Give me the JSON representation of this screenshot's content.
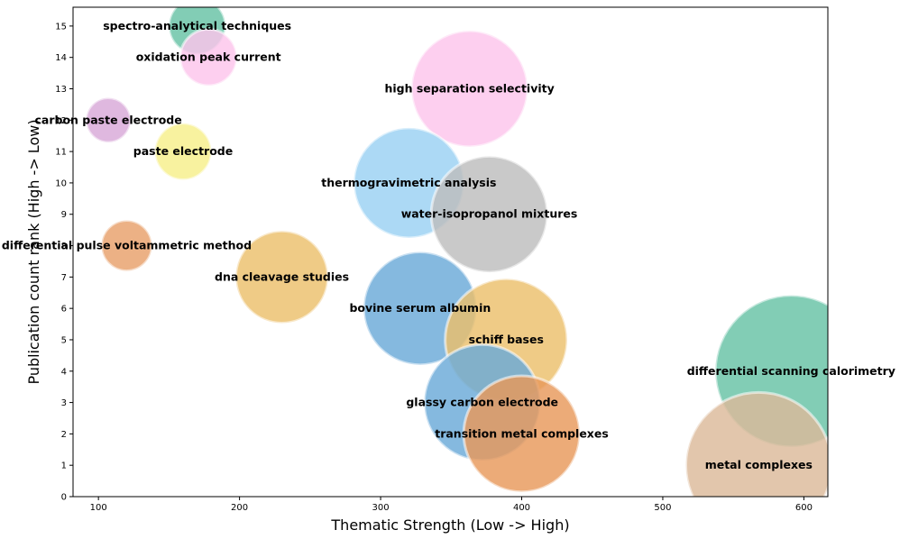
{
  "chart_data": {
    "type": "scatter",
    "subtype": "bubble",
    "title": "",
    "xlabel": "Thematic Strength (Low -> High)",
    "ylabel": "Publication count rank (High -> Low)",
    "xlim": [
      82,
      617
    ],
    "ylim": [
      0,
      15.6
    ],
    "xticks": [
      100,
      200,
      300,
      400,
      500,
      600
    ],
    "yticks": [
      0,
      1,
      2,
      3,
      4,
      5,
      6,
      7,
      8,
      9,
      10,
      11,
      12,
      13,
      14,
      15
    ],
    "grid": false,
    "legend": "none",
    "points": [
      {
        "label": "spectro-analytical techniques",
        "x": 170,
        "y": 15,
        "size": 0.95,
        "color": "#66c2a5"
      },
      {
        "label": "oxidation peak current",
        "x": 178,
        "y": 14,
        "size": 0.95,
        "color": "#fcc5ec"
      },
      {
        "label": "high separation selectivity",
        "x": 363,
        "y": 13,
        "size": 1.95,
        "color": "#fcc5ec"
      },
      {
        "label": "carbon paste electrode",
        "x": 107,
        "y": 12,
        "size": 0.75,
        "color": "#d8a8d8"
      },
      {
        "label": "paste electrode",
        "x": 160,
        "y": 11,
        "size": 0.95,
        "color": "#f6ef8a"
      },
      {
        "label": "thermogravimetric analysis",
        "x": 320,
        "y": 10,
        "size": 1.85,
        "color": "#9ad1f3"
      },
      {
        "label": "water-isopropanol mixtures",
        "x": 377,
        "y": 9,
        "size": 1.95,
        "color": "#bdbdbd"
      },
      {
        "label": "differential pulse voltammetric method",
        "x": 120,
        "y": 8,
        "size": 0.85,
        "color": "#e8a06a"
      },
      {
        "label": "dna cleavage studies",
        "x": 230,
        "y": 7,
        "size": 1.55,
        "color": "#ecbf6b"
      },
      {
        "label": "bovine serum albumin",
        "x": 328,
        "y": 6,
        "size": 1.9,
        "color": "#6aaad8"
      },
      {
        "label": "schiff bases",
        "x": 389,
        "y": 5,
        "size": 2.05,
        "color": "#ecbf6b"
      },
      {
        "label": "differential scanning calorimetry",
        "x": 591,
        "y": 4,
        "size": 2.55,
        "color": "#66c2a5"
      },
      {
        "label": "glassy carbon electrode",
        "x": 372,
        "y": 3,
        "size": 1.95,
        "color": "#6aaad8"
      },
      {
        "label": "transition metal complexes",
        "x": 400,
        "y": 2,
        "size": 1.95,
        "color": "#e8985a"
      },
      {
        "label": "metal complexes",
        "x": 568,
        "y": 1,
        "size": 2.45,
        "color": "#dcb99a"
      }
    ]
  }
}
